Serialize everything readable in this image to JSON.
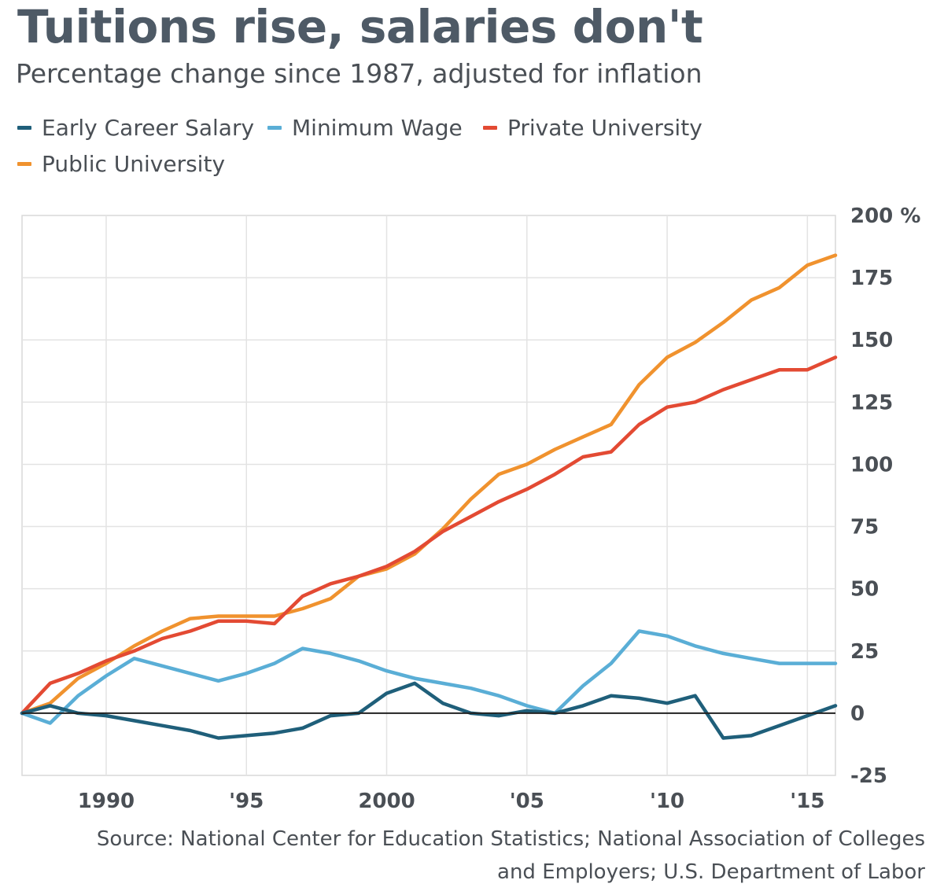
{
  "header": {
    "title": "Tuitions rise, salaries don't",
    "subtitle": "Percentage change since 1987, adjusted for inflation"
  },
  "legend": [
    {
      "label": "Early Career Salary",
      "color": "#1f5f7a"
    },
    {
      "label": "Minimum Wage",
      "color": "#5aaed6"
    },
    {
      "label": "Private University",
      "color": "#e34a33"
    },
    {
      "label": "Public University",
      "color": "#f0922e"
    }
  ],
  "source": {
    "line1": "Source: National Center for Education Statistics; National Association of Colleges",
    "line2": "and Employers; U.S. Department of Labor"
  },
  "chart_data": {
    "type": "line",
    "title": "Tuitions rise, salaries don't",
    "subtitle": "Percentage change since 1987, adjusted for inflation",
    "xlabel": "",
    "ylabel": "",
    "xlim": [
      1987,
      2016
    ],
    "ylim": [
      -25,
      200
    ],
    "x_ticks": [
      {
        "value": 1990,
        "label": "1990"
      },
      {
        "value": 1995,
        "label": "'95"
      },
      {
        "value": 2000,
        "label": "2000"
      },
      {
        "value": 2005,
        "label": "'05"
      },
      {
        "value": 2010,
        "label": "'10"
      },
      {
        "value": 2015,
        "label": "'15"
      }
    ],
    "y_ticks": [
      {
        "value": 200,
        "label": "200 %"
      },
      {
        "value": 175,
        "label": "175"
      },
      {
        "value": 150,
        "label": "150"
      },
      {
        "value": 125,
        "label": "125"
      },
      {
        "value": 100,
        "label": "100"
      },
      {
        "value": 75,
        "label": "75"
      },
      {
        "value": 50,
        "label": "50"
      },
      {
        "value": 25,
        "label": "25"
      },
      {
        "value": 0,
        "label": "0"
      },
      {
        "value": -25,
        "label": "-25"
      }
    ],
    "grid": true,
    "legend_position": "top",
    "x": [
      1987,
      1988,
      1989,
      1990,
      1991,
      1992,
      1993,
      1994,
      1995,
      1996,
      1997,
      1998,
      1999,
      2000,
      2001,
      2002,
      2003,
      2004,
      2005,
      2006,
      2007,
      2008,
      2009,
      2010,
      2011,
      2012,
      2013,
      2014,
      2015,
      2016
    ],
    "series": [
      {
        "name": "Public University",
        "color": "#f0922e",
        "values": [
          0,
          4,
          14,
          20,
          27,
          33,
          38,
          39,
          39,
          39,
          42,
          46,
          55,
          58,
          64,
          74,
          86,
          96,
          100,
          106,
          111,
          116,
          132,
          143,
          149,
          157,
          166,
          171,
          180,
          184
        ]
      },
      {
        "name": "Private University",
        "color": "#e34a33",
        "values": [
          0,
          12,
          16,
          21,
          25,
          30,
          33,
          37,
          37,
          36,
          47,
          52,
          55,
          59,
          65,
          73,
          79,
          85,
          90,
          96,
          103,
          105,
          116,
          123,
          125,
          130,
          134,
          138,
          138,
          143
        ]
      },
      {
        "name": "Minimum Wage",
        "color": "#5aaed6",
        "values": [
          0,
          -4,
          7,
          15,
          22,
          19,
          16,
          13,
          16,
          20,
          26,
          24,
          21,
          17,
          14,
          12,
          10,
          7,
          3,
          0,
          11,
          20,
          33,
          31,
          27,
          24,
          22,
          20,
          20,
          20
        ]
      },
      {
        "name": "Early Career Salary",
        "color": "#1f5f7a",
        "values": [
          0,
          3,
          0,
          -1,
          -3,
          -5,
          -7,
          -10,
          -9,
          -8,
          -6,
          -1,
          0,
          8,
          12,
          4,
          0,
          -1,
          1,
          0,
          3,
          7,
          6,
          4,
          7,
          -10,
          -9,
          -5,
          -1,
          3
        ]
      }
    ]
  }
}
